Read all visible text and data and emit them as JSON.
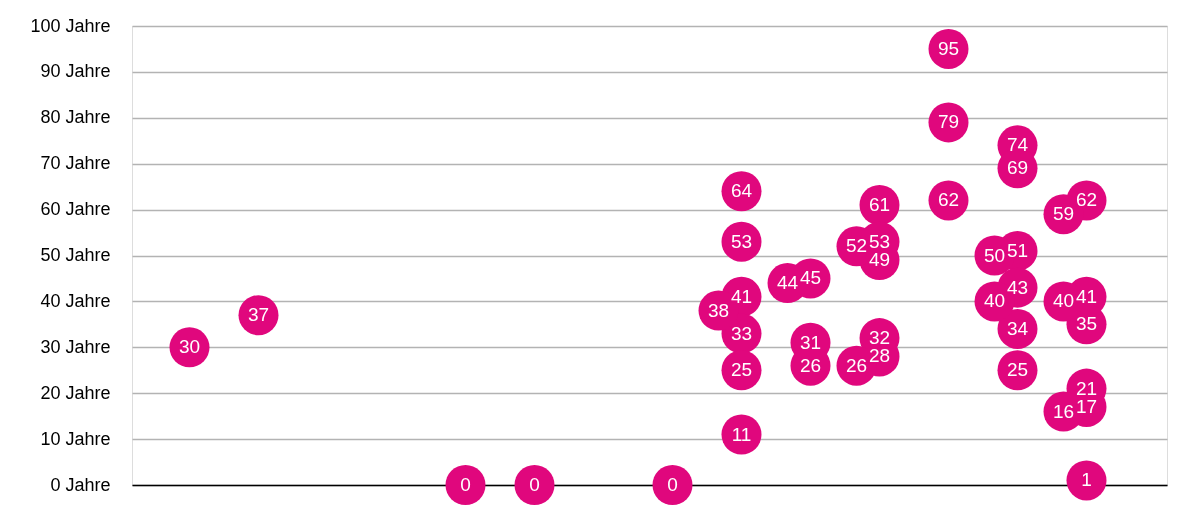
{
  "chart_data": {
    "type": "scatter",
    "categories": [
      null,
      null,
      null,
      null,
      null,
      null,
      null,
      null,
      null,
      null,
      null,
      null,
      null,
      null,
      null,
      null,
      null,
      null,
      null,
      null,
      null,
      null,
      null,
      null,
      null,
      null,
      null,
      null,
      null,
      null,
      null,
      null,
      null,
      null,
      null,
      null,
      null,
      null,
      null,
      null,
      null,
      null,
      null,
      null,
      null
    ],
    "series": [
      {
        "color": "#e0077d",
        "values": [
          null,
          null,
          30,
          null,
          null,
          37,
          null,
          null,
          null,
          null,
          null,
          null,
          null,
          null,
          0,
          null,
          null,
          0,
          null,
          null,
          null,
          null,
          null,
          0,
          null,
          null,
          64,
          null,
          null,
          45,
          null,
          null,
          61,
          null,
          null,
          95,
          null,
          null,
          74,
          null,
          null,
          62,
          null,
          null,
          null
        ]
      },
      {
        "color": "#e0077d",
        "values": [
          null,
          null,
          null,
          null,
          null,
          null,
          null,
          null,
          null,
          null,
          null,
          null,
          null,
          null,
          null,
          null,
          null,
          null,
          null,
          null,
          null,
          null,
          null,
          null,
          null,
          null,
          53,
          null,
          null,
          31,
          null,
          null,
          53,
          null,
          null,
          79,
          null,
          null,
          69,
          null,
          null,
          41,
          null,
          null,
          null
        ]
      },
      {
        "color": "#e0077d",
        "values": [
          null,
          null,
          null,
          null,
          null,
          null,
          null,
          null,
          null,
          null,
          null,
          null,
          null,
          null,
          null,
          null,
          null,
          null,
          null,
          null,
          null,
          null,
          null,
          null,
          null,
          null,
          41,
          null,
          null,
          26,
          null,
          null,
          49,
          null,
          null,
          62,
          null,
          null,
          51,
          null,
          null,
          35,
          null,
          null,
          null
        ]
      },
      {
        "color": "#e0077d",
        "values": [
          null,
          null,
          null,
          null,
          null,
          null,
          null,
          null,
          null,
          null,
          null,
          null,
          null,
          null,
          null,
          null,
          null,
          null,
          null,
          null,
          null,
          null,
          null,
          null,
          null,
          null,
          33,
          null,
          null,
          null,
          null,
          null,
          32,
          null,
          null,
          null,
          null,
          null,
          43,
          null,
          null,
          21,
          null,
          null,
          null
        ]
      },
      {
        "color": "#e0077d",
        "values": [
          null,
          null,
          null,
          null,
          null,
          null,
          null,
          null,
          null,
          null,
          null,
          null,
          null,
          null,
          null,
          null,
          null,
          null,
          null,
          null,
          null,
          null,
          null,
          null,
          null,
          null,
          25,
          null,
          null,
          null,
          null,
          null,
          28,
          null,
          null,
          null,
          null,
          null,
          34,
          null,
          null,
          17,
          null,
          null,
          null
        ]
      },
      {
        "color": "#e0077d",
        "values": [
          null,
          null,
          null,
          null,
          null,
          null,
          null,
          null,
          null,
          null,
          null,
          null,
          null,
          null,
          null,
          null,
          null,
          null,
          null,
          null,
          null,
          null,
          null,
          null,
          null,
          null,
          11,
          null,
          null,
          null,
          null,
          null,
          null,
          null,
          null,
          null,
          null,
          null,
          25,
          null,
          null,
          1,
          null,
          null,
          null
        ]
      },
      {
        "color": "#e0077d",
        "values": [
          null,
          null,
          null,
          null,
          null,
          null,
          null,
          null,
          null,
          null,
          null,
          null,
          null,
          null,
          null,
          null,
          null,
          null,
          null,
          null,
          null,
          null,
          null,
          null,
          null,
          38,
          null,
          null,
          44,
          null,
          null,
          52,
          null,
          null,
          null,
          null,
          null,
          50,
          null,
          null,
          59,
          null,
          null,
          null,
          null
        ]
      },
      {
        "color": "#e0077d",
        "values": [
          null,
          null,
          null,
          null,
          null,
          null,
          null,
          null,
          null,
          null,
          null,
          null,
          null,
          null,
          null,
          null,
          null,
          null,
          null,
          null,
          null,
          null,
          null,
          null,
          null,
          null,
          null,
          null,
          null,
          null,
          null,
          26,
          null,
          null,
          null,
          null,
          null,
          40,
          null,
          null,
          40,
          null,
          null,
          null,
          null
        ]
      },
      {
        "color": "#e0077d",
        "values": [
          null,
          null,
          null,
          null,
          null,
          null,
          null,
          null,
          null,
          null,
          null,
          null,
          null,
          null,
          null,
          null,
          null,
          null,
          null,
          null,
          null,
          null,
          null,
          null,
          null,
          null,
          null,
          null,
          null,
          null,
          null,
          null,
          null,
          null,
          null,
          null,
          null,
          null,
          null,
          null,
          16,
          null,
          null,
          null,
          null
        ]
      }
    ],
    "ylim": [
      0,
      100
    ],
    "yticks": [
      {
        "value": 0,
        "label": "0 Jahre"
      },
      {
        "value": 10,
        "label": "10 Jahre"
      },
      {
        "value": 20,
        "label": "20 Jahre"
      },
      {
        "value": 30,
        "label": "30 Jahre"
      },
      {
        "value": 40,
        "label": "40 Jahre"
      },
      {
        "value": 50,
        "label": "50 Jahre"
      },
      {
        "value": 60,
        "label": "60 Jahre"
      },
      {
        "value": 70,
        "label": "70 Jahre"
      },
      {
        "value": 80,
        "label": "80 Jahre"
      },
      {
        "value": 90,
        "label": "90 Jahre"
      },
      {
        "value": 100,
        "label": "100 Jahre"
      }
    ],
    "grid": "y",
    "marker": "circle",
    "data_labels": true,
    "tick_labels": "y",
    "legend": false
  }
}
